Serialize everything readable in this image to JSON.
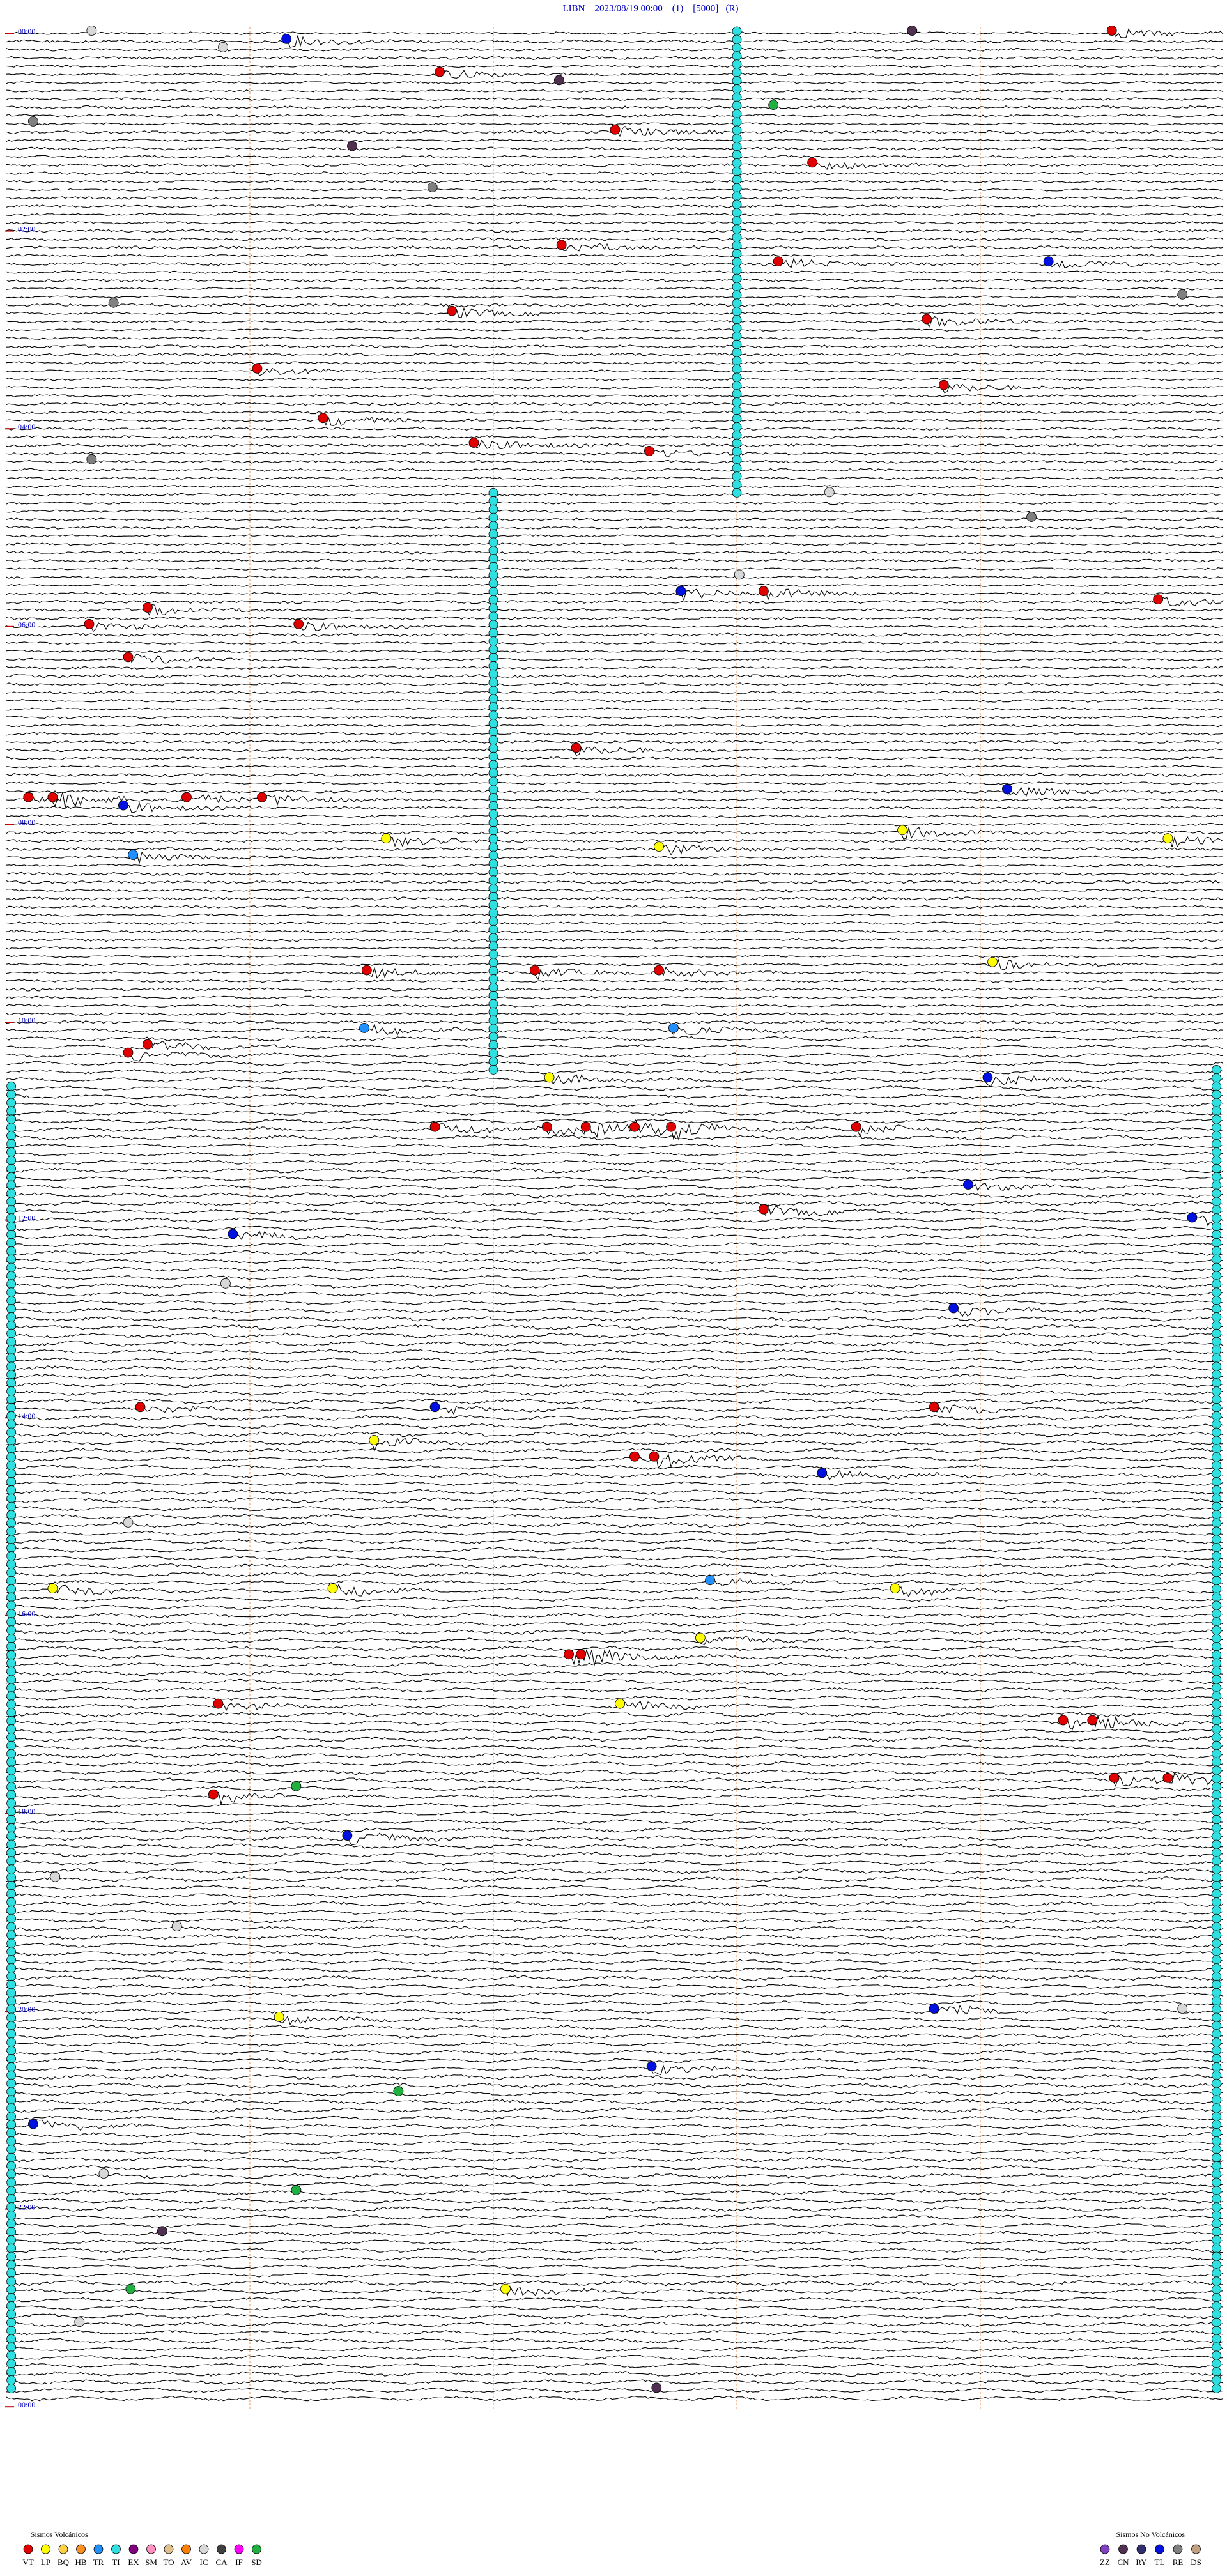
{
  "chart_data": {
    "type": "helicorder",
    "title": "LIBN    2023/08/19 00:00    (1)    [5000]   (R)",
    "row_labels": [
      "00:00",
      "02:00",
      "04:00",
      "06:00",
      "08:00",
      "10:00",
      "12:00",
      "14:00",
      "16:00",
      "18:00",
      "20:00",
      "22:00",
      "00:00"
    ],
    "legend_volcanic": {
      "title": "Sismos Volcánicos",
      "items": [
        {
          "code": "VT",
          "color": "#e00000"
        },
        {
          "code": "LP",
          "color": "#ffff00"
        },
        {
          "code": "BQ",
          "color": "#ffd040"
        },
        {
          "code": "HB",
          "color": "#ff9020"
        },
        {
          "code": "TR",
          "color": "#2090ff"
        },
        {
          "code": "TI",
          "color": "#30e0e0"
        },
        {
          "code": "EX",
          "color": "#800080"
        },
        {
          "code": "SM",
          "color": "#ff90c0"
        },
        {
          "code": "TO",
          "color": "#e0c090"
        },
        {
          "code": "AV",
          "color": "#ff8000"
        },
        {
          "code": "IC",
          "color": "#d8d8d8"
        },
        {
          "code": "CA",
          "color": "#404040"
        },
        {
          "code": "IF",
          "color": "#ff00ff"
        },
        {
          "code": "SD",
          "color": "#20b040"
        }
      ]
    },
    "legend_non_volcanic": {
      "title": "Sismos No Volcánicos",
      "items": [
        {
          "code": "ZZ",
          "color": "#8040c0"
        },
        {
          "code": "CN",
          "color": "#503050"
        },
        {
          "code": "RY",
          "color": "#303070"
        },
        {
          "code": "TL",
          "color": "#0010e0"
        },
        {
          "code": "RE",
          "color": "#808080"
        },
        {
          "code": "DS",
          "color": "#c0a080"
        }
      ]
    },
    "tremor": [
      {
        "type": "TI",
        "start": 3,
        "end": 283
      },
      {
        "type": "TI",
        "start": 282,
        "end": 632
      },
      {
        "type": "TI",
        "start": 640.02,
        "end": 1430.02
      },
      {
        "type": "TI",
        "start": 634.97,
        "end": 1434.97
      }
    ],
    "events": [
      {
        "t": 0.35,
        "type": "IC"
      },
      {
        "t": 6.15,
        "type": "TL"
      },
      {
        "t": 3.72,
        "type": "CN"
      },
      {
        "t": 4.54,
        "type": "VT"
      },
      {
        "t": 10.89,
        "type": "IC"
      },
      {
        "t": 26.78,
        "type": "VT"
      },
      {
        "t": 32.27,
        "type": "CN"
      },
      {
        "t": 48.15,
        "type": "SD"
      },
      {
        "t": 55.11,
        "type": "RE"
      },
      {
        "t": 71.42,
        "type": "CN"
      },
      {
        "t": 62.5,
        "type": "VT"
      },
      {
        "t": 83.31,
        "type": "VT"
      },
      {
        "t": 96.75,
        "type": "RE"
      },
      {
        "t": 132.28,
        "type": "VT"
      },
      {
        "t": 144.28,
        "type": "TL"
      },
      {
        "t": 143.17,
        "type": "VT"
      },
      {
        "t": 165.44,
        "type": "RE"
      },
      {
        "t": 171.83,
        "type": "VT"
      },
      {
        "t": 164.83,
        "type": "RE"
      },
      {
        "t": 178.78,
        "type": "VT"
      },
      {
        "t": 206.03,
        "type": "VT"
      },
      {
        "t": 218.85,
        "type": "VT"
      },
      {
        "t": 236.3,
        "type": "VT"
      },
      {
        "t": 251.92,
        "type": "VT"
      },
      {
        "t": 257.64,
        "type": "VT"
      },
      {
        "t": 260.35,
        "type": "RE"
      },
      {
        "t": 283.38,
        "type": "IC"
      },
      {
        "t": 299.21,
        "type": "RE"
      },
      {
        "t": 333.01,
        "type": "IC"
      },
      {
        "t": 342.77,
        "type": "TL"
      },
      {
        "t": 343.11,
        "type": "VT"
      },
      {
        "t": 349.73,
        "type": "VT"
      },
      {
        "t": 350.58,
        "type": "VT"
      },
      {
        "t": 361.2,
        "type": "VT"
      },
      {
        "t": 360.34,
        "type": "VT"
      },
      {
        "t": 380.5,
        "type": "VT"
      },
      {
        "t": 437.34,
        "type": "VT"
      },
      {
        "t": 464.11,
        "type": "TL"
      },
      {
        "t": 465.09,
        "type": "VT"
      },
      {
        "t": 465.19,
        "type": "VT"
      },
      {
        "t": 470.48,
        "type": "TL"
      },
      {
        "t": 465.74,
        "type": "VT"
      },
      {
        "t": 466.05,
        "type": "VT"
      },
      {
        "t": 491.56,
        "type": "LP"
      },
      {
        "t": 497.68,
        "type": "LP"
      },
      {
        "t": 488.68,
        "type": "LP"
      },
      {
        "t": 494.77,
        "type": "LP"
      },
      {
        "t": 500.52,
        "type": "TR"
      },
      {
        "t": 571.48,
        "type": "VT"
      },
      {
        "t": 572.17,
        "type": "VT"
      },
      {
        "t": 572.68,
        "type": "VT"
      },
      {
        "t": 569.05,
        "type": "LP"
      },
      {
        "t": 606.47,
        "type": "TR"
      },
      {
        "t": 607.74,
        "type": "TR"
      },
      {
        "t": 620.5,
        "type": "VT"
      },
      {
        "t": 615.58,
        "type": "VT"
      },
      {
        "t": 637.23,
        "type": "LP"
      },
      {
        "t": 639.03,
        "type": "TL"
      },
      {
        "t": 666.76,
        "type": "VT"
      },
      {
        "t": 667.22,
        "type": "VT"
      },
      {
        "t": 667.38,
        "type": "VT"
      },
      {
        "t": 667.58,
        "type": "VT"
      },
      {
        "t": 667.73,
        "type": "VT"
      },
      {
        "t": 668.49,
        "type": "VT"
      },
      {
        "t": 718.11,
        "type": "VT"
      },
      {
        "t": 730.93,
        "type": "TL"
      },
      {
        "t": 703.95,
        "type": "TL"
      },
      {
        "t": 724.87,
        "type": "TL"
      },
      {
        "t": 778.89,
        "type": "TL"
      },
      {
        "t": 836.76,
        "type": "TL"
      },
      {
        "t": 835.55,
        "type": "VT"
      },
      {
        "t": 838.81,
        "type": "VT"
      },
      {
        "t": 867.58,
        "type": "VT"
      },
      {
        "t": 867.66,
        "type": "VT"
      },
      {
        "t": 878.35,
        "type": "TL"
      },
      {
        "t": 856.51,
        "type": "LP"
      },
      {
        "t": 945.19,
        "type": "LP"
      },
      {
        "t": 946.34,
        "type": "LP"
      },
      {
        "t": 942.89,
        "type": "TR"
      },
      {
        "t": 948.65,
        "type": "LP"
      },
      {
        "t": 987.31,
        "type": "VT"
      },
      {
        "t": 987.36,
        "type": "VT"
      },
      {
        "t": 977.85,
        "type": "LP"
      },
      {
        "t": 1017.52,
        "type": "LP"
      },
      {
        "t": 1015.87,
        "type": "VT"
      },
      {
        "t": 1029.34,
        "type": "VT"
      },
      {
        "t": 1029.46,
        "type": "VT"
      },
      {
        "t": 1064.55,
        "type": "VT"
      },
      {
        "t": 1064.77,
        "type": "VT"
      },
      {
        "t": 1070.85,
        "type": "VT"
      },
      {
        "t": 1066.19,
        "type": "SD"
      },
      {
        "t": 1096.4,
        "type": "TL"
      },
      {
        "t": 1203.81,
        "type": "TL"
      },
      {
        "t": 1206.12,
        "type": "LP"
      },
      {
        "t": 1237.65,
        "type": "TL"
      },
      {
        "t": 1270.11,
        "type": "TL"
      },
      {
        "t": 1335.64,
        "type": "CN"
      },
      {
        "t": 1372.05,
        "type": "LP"
      },
      {
        "t": 1432.67,
        "type": "CN"
      },
      {
        "t": 1251.61,
        "type": "SD"
      },
      {
        "t": 1311.19,
        "type": "SD"
      },
      {
        "t": 1370.51,
        "type": "SD"
      },
      {
        "t": 1204.83,
        "type": "IC"
      },
      {
        "t": 1120.2,
        "type": "IC"
      },
      {
        "t": 1150.7,
        "type": "IC"
      },
      {
        "t": 1300.4,
        "type": "IC"
      },
      {
        "t": 1390.3,
        "type": "IC"
      },
      {
        "t": 905.5,
        "type": "IC"
      },
      {
        "t": 760.9,
        "type": "IC"
      }
    ]
  }
}
